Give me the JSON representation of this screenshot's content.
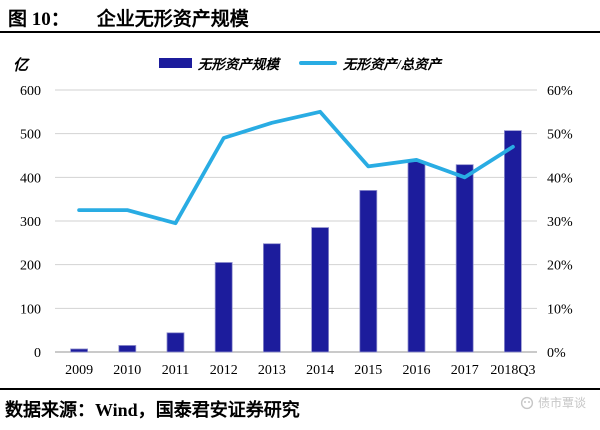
{
  "figure": {
    "label": "图 10：",
    "title": "企业无形资产规模"
  },
  "legend": {
    "items": [
      {
        "label": "无形资产规模",
        "marker": "bar",
        "color": "#1c1c9c"
      },
      {
        "label": "无形资产/总资产",
        "marker": "line",
        "color": "#29ace3"
      }
    ]
  },
  "chart_data": {
    "type": "bar",
    "subtype": "bar+line combo, dual axis",
    "title": "企业无形资产规模",
    "grid": "horizontal",
    "legend_position": "top",
    "categories": [
      "2009",
      "2010",
      "2011",
      "2012",
      "2013",
      "2014",
      "2015",
      "2016",
      "2017",
      "2018Q3"
    ],
    "series": [
      {
        "name": "无形资产规模",
        "type": "bar",
        "axis": "left",
        "color": "#1c1c9c",
        "values": [
          7,
          15,
          44,
          205,
          248,
          285,
          370,
          436,
          429,
          507
        ]
      },
      {
        "name": "无形资产/总资产",
        "type": "line",
        "axis": "right",
        "color": "#29ace3",
        "values": [
          32.5,
          32.5,
          29.5,
          49,
          52.5,
          55,
          42.5,
          44,
          40,
          47
        ]
      }
    ],
    "left_axis": {
      "unit": "亿",
      "min": 0,
      "max": 600,
      "ticks": [
        {
          "value": 0,
          "label": "0"
        },
        {
          "value": 100,
          "label": "100"
        },
        {
          "value": 200,
          "label": "200"
        },
        {
          "value": 300,
          "label": "300"
        },
        {
          "value": 400,
          "label": "400"
        },
        {
          "value": 500,
          "label": "500"
        },
        {
          "value": 600,
          "label": "600"
        }
      ]
    },
    "right_axis": {
      "min": 0,
      "max": 60,
      "ticks": [
        {
          "value": 0,
          "label": "0%"
        },
        {
          "value": 10,
          "label": "10%"
        },
        {
          "value": 20,
          "label": "20%"
        },
        {
          "value": 30,
          "label": "30%"
        },
        {
          "value": 40,
          "label": "40%"
        },
        {
          "value": 50,
          "label": "50%"
        },
        {
          "value": 60,
          "label": "60%"
        }
      ]
    }
  },
  "footer": {
    "source": "数据来源：Wind，国泰君安证券研究",
    "watermark": "债市覃谈"
  },
  "colors": {
    "bar": "#1c1c9c",
    "bar_edge": "#9191cd",
    "line": "#29ace3",
    "gridline": "#d2d2d2",
    "axisline": "#ababab",
    "watermark": "#c6c6c6"
  }
}
